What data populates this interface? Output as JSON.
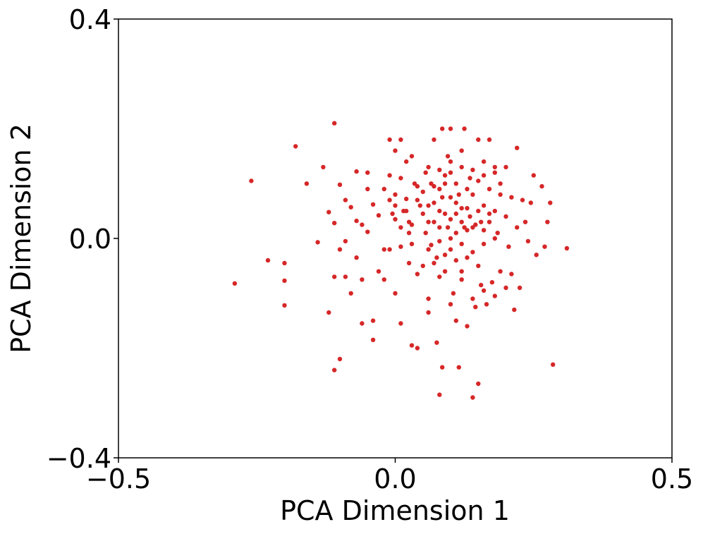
{
  "chart_data": {
    "type": "scatter",
    "title": "",
    "xlabel": "PCA Dimension 1",
    "ylabel": "PCA Dimension 2",
    "xlim": [
      -0.5,
      0.5
    ],
    "ylim": [
      -0.4,
      0.4
    ],
    "xticks": [
      {
        "value": -0.5,
        "label": "−0.5"
      },
      {
        "value": 0.0,
        "label": "0.0"
      },
      {
        "value": 0.5,
        "label": "0.5"
      }
    ],
    "yticks": [
      {
        "value": -0.4,
        "label": "−0.4"
      },
      {
        "value": 0.0,
        "label": "0.0"
      },
      {
        "value": 0.4,
        "label": "0.4"
      }
    ],
    "grid": false,
    "point_color": "#d62728",
    "points": [
      [
        -0.29,
        -0.082
      ],
      [
        -0.26,
        0.105
      ],
      [
        -0.23,
        -0.04
      ],
      [
        -0.2,
        -0.045
      ],
      [
        -0.2,
        -0.077
      ],
      [
        -0.2,
        -0.122
      ],
      [
        -0.18,
        0.168
      ],
      [
        -0.16,
        0.1
      ],
      [
        -0.14,
        -0.007
      ],
      [
        -0.13,
        0.13
      ],
      [
        -0.12,
        -0.135
      ],
      [
        -0.12,
        0.048
      ],
      [
        -0.11,
        0.21
      ],
      [
        -0.11,
        -0.07
      ],
      [
        -0.11,
        0.028
      ],
      [
        -0.11,
        -0.24
      ],
      [
        -0.1,
        -0.22
      ],
      [
        -0.1,
        0.098
      ],
      [
        -0.1,
        -0.02
      ],
      [
        -0.09,
        0.07
      ],
      [
        -0.09,
        -0.005
      ],
      [
        -0.09,
        -0.07
      ],
      [
        -0.08,
        0.057
      ],
      [
        -0.08,
        -0.1
      ],
      [
        -0.07,
        0.032
      ],
      [
        -0.07,
        -0.035
      ],
      [
        -0.07,
        0.122
      ],
      [
        -0.06,
        -0.155
      ],
      [
        -0.06,
        0.025
      ],
      [
        -0.06,
        -0.075
      ],
      [
        -0.05,
        0.09
      ],
      [
        -0.05,
        0.012
      ],
      [
        -0.05,
        0.12
      ],
      [
        -0.04,
        -0.15
      ],
      [
        -0.04,
        -0.185
      ],
      [
        -0.04,
        0.062
      ],
      [
        -0.03,
        -0.06
      ],
      [
        -0.03,
        0.042
      ],
      [
        -0.02,
        -0.075
      ],
      [
        -0.02,
        0.09
      ],
      [
        -0.02,
        -0.02
      ],
      [
        -0.01,
        0.18
      ],
      [
        -0.01,
        0.07
      ],
      [
        -0.01,
        0.115
      ],
      [
        -0.01,
        -0.02
      ],
      [
        0.0,
        0.16
      ],
      [
        0.0,
        0.06
      ],
      [
        0.0,
        0.035
      ],
      [
        0.0,
        -0.1
      ],
      [
        0.01,
        0.18
      ],
      [
        0.01,
        0.11
      ],
      [
        0.01,
        -0.015
      ],
      [
        0.01,
        -0.155
      ],
      [
        0.015,
        0.05
      ],
      [
        0.02,
        0.14
      ],
      [
        0.02,
        0.072
      ],
      [
        0.025,
        -0.045
      ],
      [
        0.025,
        0.01
      ],
      [
        0.03,
        0.15
      ],
      [
        0.03,
        0.025
      ],
      [
        0.03,
        -0.195
      ],
      [
        0.035,
        0.1
      ],
      [
        0.04,
        -0.2
      ],
      [
        0.04,
        0.095
      ],
      [
        0.045,
        0.06
      ],
      [
        0.05,
        -0.05
      ],
      [
        0.05,
        0.045
      ],
      [
        0.055,
        0.12
      ],
      [
        0.055,
        0.01
      ],
      [
        0.06,
        0.06
      ],
      [
        0.06,
        -0.135
      ],
      [
        0.065,
        -0.012
      ],
      [
        0.065,
        0.1
      ],
      [
        0.07,
        0.18
      ],
      [
        0.07,
        0.03
      ],
      [
        0.075,
        -0.19
      ],
      [
        0.075,
        -0.035
      ],
      [
        0.08,
        0.09
      ],
      [
        0.08,
        0.05
      ],
      [
        0.08,
        -0.285
      ],
      [
        0.085,
        0.075
      ],
      [
        0.085,
        0.2
      ],
      [
        0.085,
        -0.235
      ],
      [
        0.09,
        -0.06
      ],
      [
        0.09,
        0.1
      ],
      [
        0.095,
        0.02
      ],
      [
        0.095,
        0.15
      ],
      [
        0.1,
        0.075
      ],
      [
        0.1,
        -0.02
      ],
      [
        0.1,
        0.12
      ],
      [
        0.1,
        0.2
      ],
      [
        0.105,
        -0.1
      ],
      [
        0.11,
        -0.15
      ],
      [
        0.11,
        0.045
      ],
      [
        0.11,
        0.01
      ],
      [
        0.115,
        0.08
      ],
      [
        0.115,
        -0.235
      ],
      [
        0.12,
        0.16
      ],
      [
        0.12,
        0.055
      ],
      [
        0.12,
        -0.06
      ],
      [
        0.125,
        0.2
      ],
      [
        0.125,
        0.02
      ],
      [
        0.13,
        0.015
      ],
      [
        0.13,
        -0.16
      ],
      [
        0.135,
        0.11
      ],
      [
        0.135,
        0.04
      ],
      [
        0.14,
        -0.29
      ],
      [
        0.14,
        0.08
      ],
      [
        0.145,
        -0.125
      ],
      [
        0.145,
        0.025
      ],
      [
        0.15,
        -0.265
      ],
      [
        0.15,
        0.18
      ],
      [
        0.155,
        0.03
      ],
      [
        0.155,
        -0.085
      ],
      [
        0.16,
        0.06
      ],
      [
        0.16,
        0.14
      ],
      [
        0.165,
        -0.12
      ],
      [
        0.17,
        0.03
      ],
      [
        0.17,
        0.18
      ],
      [
        0.175,
        -0.08
      ],
      [
        0.18,
        0.12
      ],
      [
        0.18,
        0.05
      ],
      [
        0.185,
        0.01
      ],
      [
        0.19,
        -0.06
      ],
      [
        0.19,
        0.08
      ],
      [
        0.2,
        0.13
      ],
      [
        0.2,
        0.04
      ],
      [
        0.205,
        -0.015
      ],
      [
        0.21,
        -0.065
      ],
      [
        0.21,
        0.075
      ],
      [
        0.215,
        -0.13
      ],
      [
        0.22,
        0.02
      ],
      [
        0.22,
        0.165
      ],
      [
        0.225,
        -0.09
      ],
      [
        0.23,
        0.07
      ],
      [
        0.235,
        0.03
      ],
      [
        0.24,
        -0.005
      ],
      [
        0.245,
        0.065
      ],
      [
        0.25,
        0.115
      ],
      [
        0.255,
        -0.03
      ],
      [
        0.265,
        0.095
      ],
      [
        0.27,
        -0.015
      ],
      [
        0.275,
        0.03
      ],
      [
        0.28,
        0.065
      ],
      [
        0.285,
        -0.23
      ],
      [
        0.31,
        -0.018
      ],
      [
        0.0,
        0.08
      ],
      [
        0.02,
        0.05
      ],
      [
        0.04,
        0.07
      ],
      [
        0.06,
        0.03
      ],
      [
        0.07,
        0.065
      ],
      [
        0.08,
        0.02
      ],
      [
        0.09,
        0.045
      ],
      [
        0.1,
        0.035
      ],
      [
        0.11,
        0.065
      ],
      [
        0.12,
        0.03
      ],
      [
        0.13,
        0.055
      ],
      [
        0.14,
        0.02
      ],
      [
        0.15,
        0.05
      ],
      [
        0.16,
        0.015
      ],
      [
        0.17,
        0.045
      ],
      [
        0.05,
        0.085
      ],
      [
        0.07,
        0.095
      ],
      [
        0.09,
        0.115
      ],
      [
        0.11,
        0.1
      ],
      [
        0.13,
        0.09
      ],
      [
        0.15,
        0.105
      ],
      [
        0.17,
        0.09
      ],
      [
        0.19,
        0.1
      ],
      [
        0.06,
        0.13
      ],
      [
        0.08,
        0.125
      ],
      [
        0.1,
        0.14
      ],
      [
        0.12,
        0.13
      ],
      [
        0.14,
        0.125
      ],
      [
        0.16,
        0.115
      ],
      [
        0.18,
        0.13
      ],
      [
        0.03,
        -0.01
      ],
      [
        0.06,
        -0.02
      ],
      [
        0.08,
        -0.005
      ],
      [
        0.1,
        0.0
      ],
      [
        0.12,
        -0.01
      ],
      [
        0.14,
        -0.025
      ],
      [
        0.16,
        -0.01
      ],
      [
        0.18,
        0.0
      ],
      [
        0.07,
        -0.045
      ],
      [
        0.09,
        -0.03
      ],
      [
        0.11,
        -0.04
      ],
      [
        0.13,
        -0.035
      ],
      [
        0.15,
        -0.05
      ],
      [
        0.04,
        -0.065
      ],
      [
        0.08,
        -0.07
      ],
      [
        0.12,
        -0.075
      ],
      [
        0.16,
        -0.095
      ],
      [
        0.2,
        -0.09
      ],
      [
        0.06,
        -0.11
      ],
      [
        0.1,
        -0.12
      ],
      [
        0.14,
        -0.11
      ],
      [
        0.18,
        -0.105
      ],
      [
        0.01,
        0.02
      ],
      [
        -0.005,
        0.045
      ],
      [
        0.025,
        0.03
      ]
    ]
  }
}
